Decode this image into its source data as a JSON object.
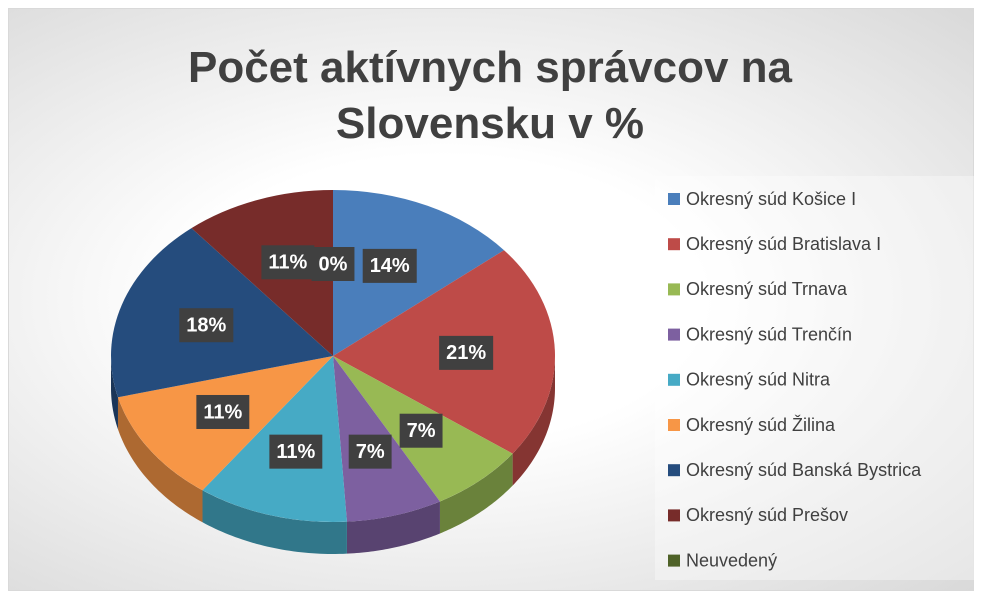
{
  "chart_data": {
    "type": "pie",
    "title": "Počet aktívnych správcov na Slovensku v %",
    "categories": [
      "Okresný súd Košice I",
      "Okresný súd Bratislava I",
      "Okresný súd Trnava",
      "Okresný súd Trenčín",
      "Okresný súd Nitra",
      "Okresný súd Žilina",
      "Okresný súd Banská Bystrica",
      "Okresný súd Prešov",
      "Neuvedený"
    ],
    "values": [
      14,
      21,
      7,
      7,
      11,
      11,
      18,
      11,
      0
    ],
    "value_labels": [
      "14%",
      "21%",
      "7%",
      "7%",
      "11%",
      "11%",
      "18%",
      "11%",
      "0%"
    ],
    "colors": [
      "#4a7ebb",
      "#be4b48",
      "#98b954",
      "#7d60a0",
      "#46aac5",
      "#f79646",
      "#254c7d",
      "#772c2a",
      "#4f6228"
    ],
    "legend": "right"
  }
}
